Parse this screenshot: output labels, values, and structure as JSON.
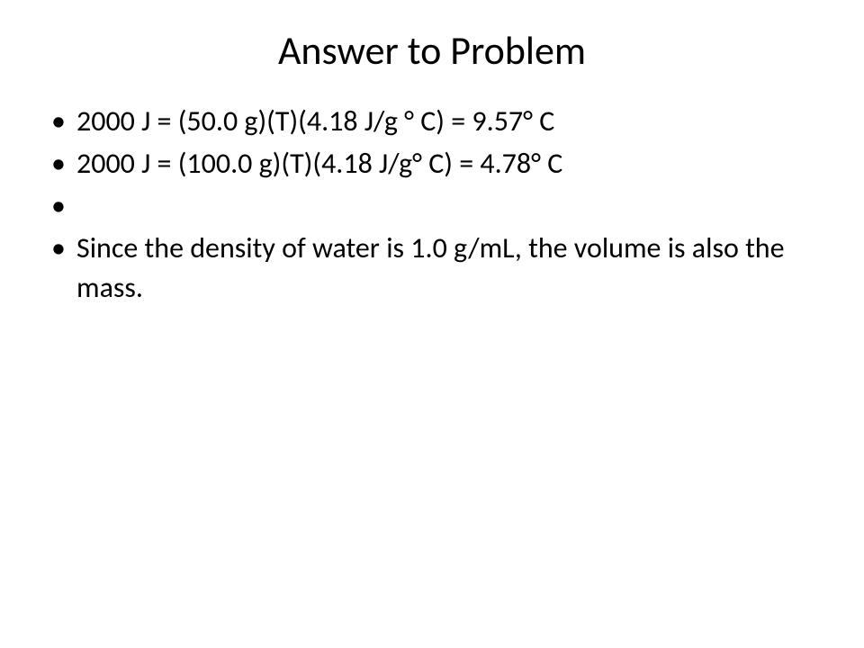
{
  "slide": {
    "title": "Answer to Problem",
    "bullets": [
      "2000 J = (50.0 g)(T)(4.18 J/g ° C) = 9.57° C",
      "2000 J = (100.0 g)(T)(4.18 J/g° C) = 4.78° C",
      "",
      "Since the density of water is 1.0 g/mL, the volume is also the mass."
    ]
  },
  "style": {
    "background_color": "#ffffff",
    "text_color": "#000000",
    "font_family": "Calibri",
    "title_fontsize": 44,
    "body_fontsize": 32,
    "bullet_char": "•",
    "slide_width": 960,
    "slide_height": 720
  }
}
